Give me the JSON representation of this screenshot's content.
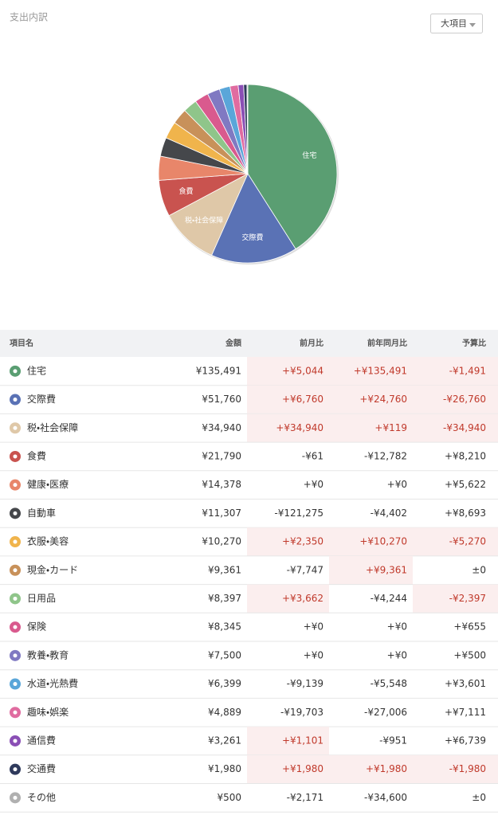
{
  "header": {
    "title": "支出内訳",
    "dropdown": "大項目"
  },
  "chart_data": {
    "type": "pie",
    "categories": [
      "住宅",
      "交際費",
      "税・社会保障",
      "食費",
      null,
      null,
      null,
      null,
      null,
      null,
      null,
      null,
      null,
      null,
      null,
      null
    ],
    "values": [
      135491,
      51760,
      34940,
      21790,
      14378,
      11307,
      10270,
      9361,
      8397,
      8345,
      7500,
      6399,
      4889,
      3261,
      1980,
      500
    ],
    "colors": [
      "#5a9e72",
      "#5a72b5",
      "#dfc8a8",
      "#c9534f",
      "#e8866a",
      "#45474b",
      "#f0b44c",
      "#c8915a",
      "#8fc58a",
      "#d95a8e",
      "#8079c2",
      "#5aa6d9",
      "#e06ca0",
      "#8a4fb5",
      "#2f3a5c",
      "#b0b0b0"
    ]
  },
  "table": {
    "columns": [
      "項目名",
      "金額",
      "前月比",
      "前年同月比",
      "予算比"
    ],
    "rows": [
      [
        "住宅",
        "¥135,491",
        "+¥5,044",
        "+¥135,491",
        "-¥1,491"
      ],
      [
        "交際費",
        "¥51,760",
        "+¥6,760",
        "+¥24,760",
        "-¥26,760"
      ],
      [
        "税・社会保障",
        "¥34,940",
        "+¥34,940",
        "+¥119",
        "-¥34,940"
      ],
      [
        "食費",
        "¥21,790",
        "-¥61",
        "-¥12,782",
        "+¥8,210"
      ],
      [
        "健康・医療",
        "¥14,378",
        "+¥0",
        "+¥0",
        "+¥5,622"
      ],
      [
        "自動車",
        "¥11,307",
        "-¥121,275",
        "-¥4,402",
        "+¥8,693"
      ],
      [
        "衣服・美容",
        "¥10,270",
        "+¥2,350",
        "+¥10,270",
        "-¥5,270"
      ],
      [
        "現金・カード",
        "¥9,361",
        "-¥7,747",
        "+¥9,361",
        "±0"
      ],
      [
        "日用品",
        "¥8,397",
        "+¥3,662",
        "-¥4,244",
        "-¥2,397"
      ],
      [
        "保険",
        "¥8,345",
        "+¥0",
        "+¥0",
        "+¥655"
      ],
      [
        "教養・教育",
        "¥7,500",
        "+¥0",
        "+¥0",
        "+¥500"
      ],
      [
        "水道・光熱費",
        "¥6,399",
        "-¥9,139",
        "-¥5,548",
        "+¥3,601"
      ],
      [
        "趣味・娯楽",
        "¥4,889",
        "-¥19,703",
        "-¥27,006",
        "+¥7,111"
      ],
      [
        "通信費",
        "¥3,261",
        "+¥1,101",
        "-¥951",
        "+¥6,739"
      ],
      [
        "交通費",
        "¥1,980",
        "+¥1,980",
        "+¥1,980",
        "-¥1,980"
      ],
      [
        "その他",
        "¥500",
        "-¥2,171",
        "-¥34,600",
        "±0"
      ]
    ]
  }
}
